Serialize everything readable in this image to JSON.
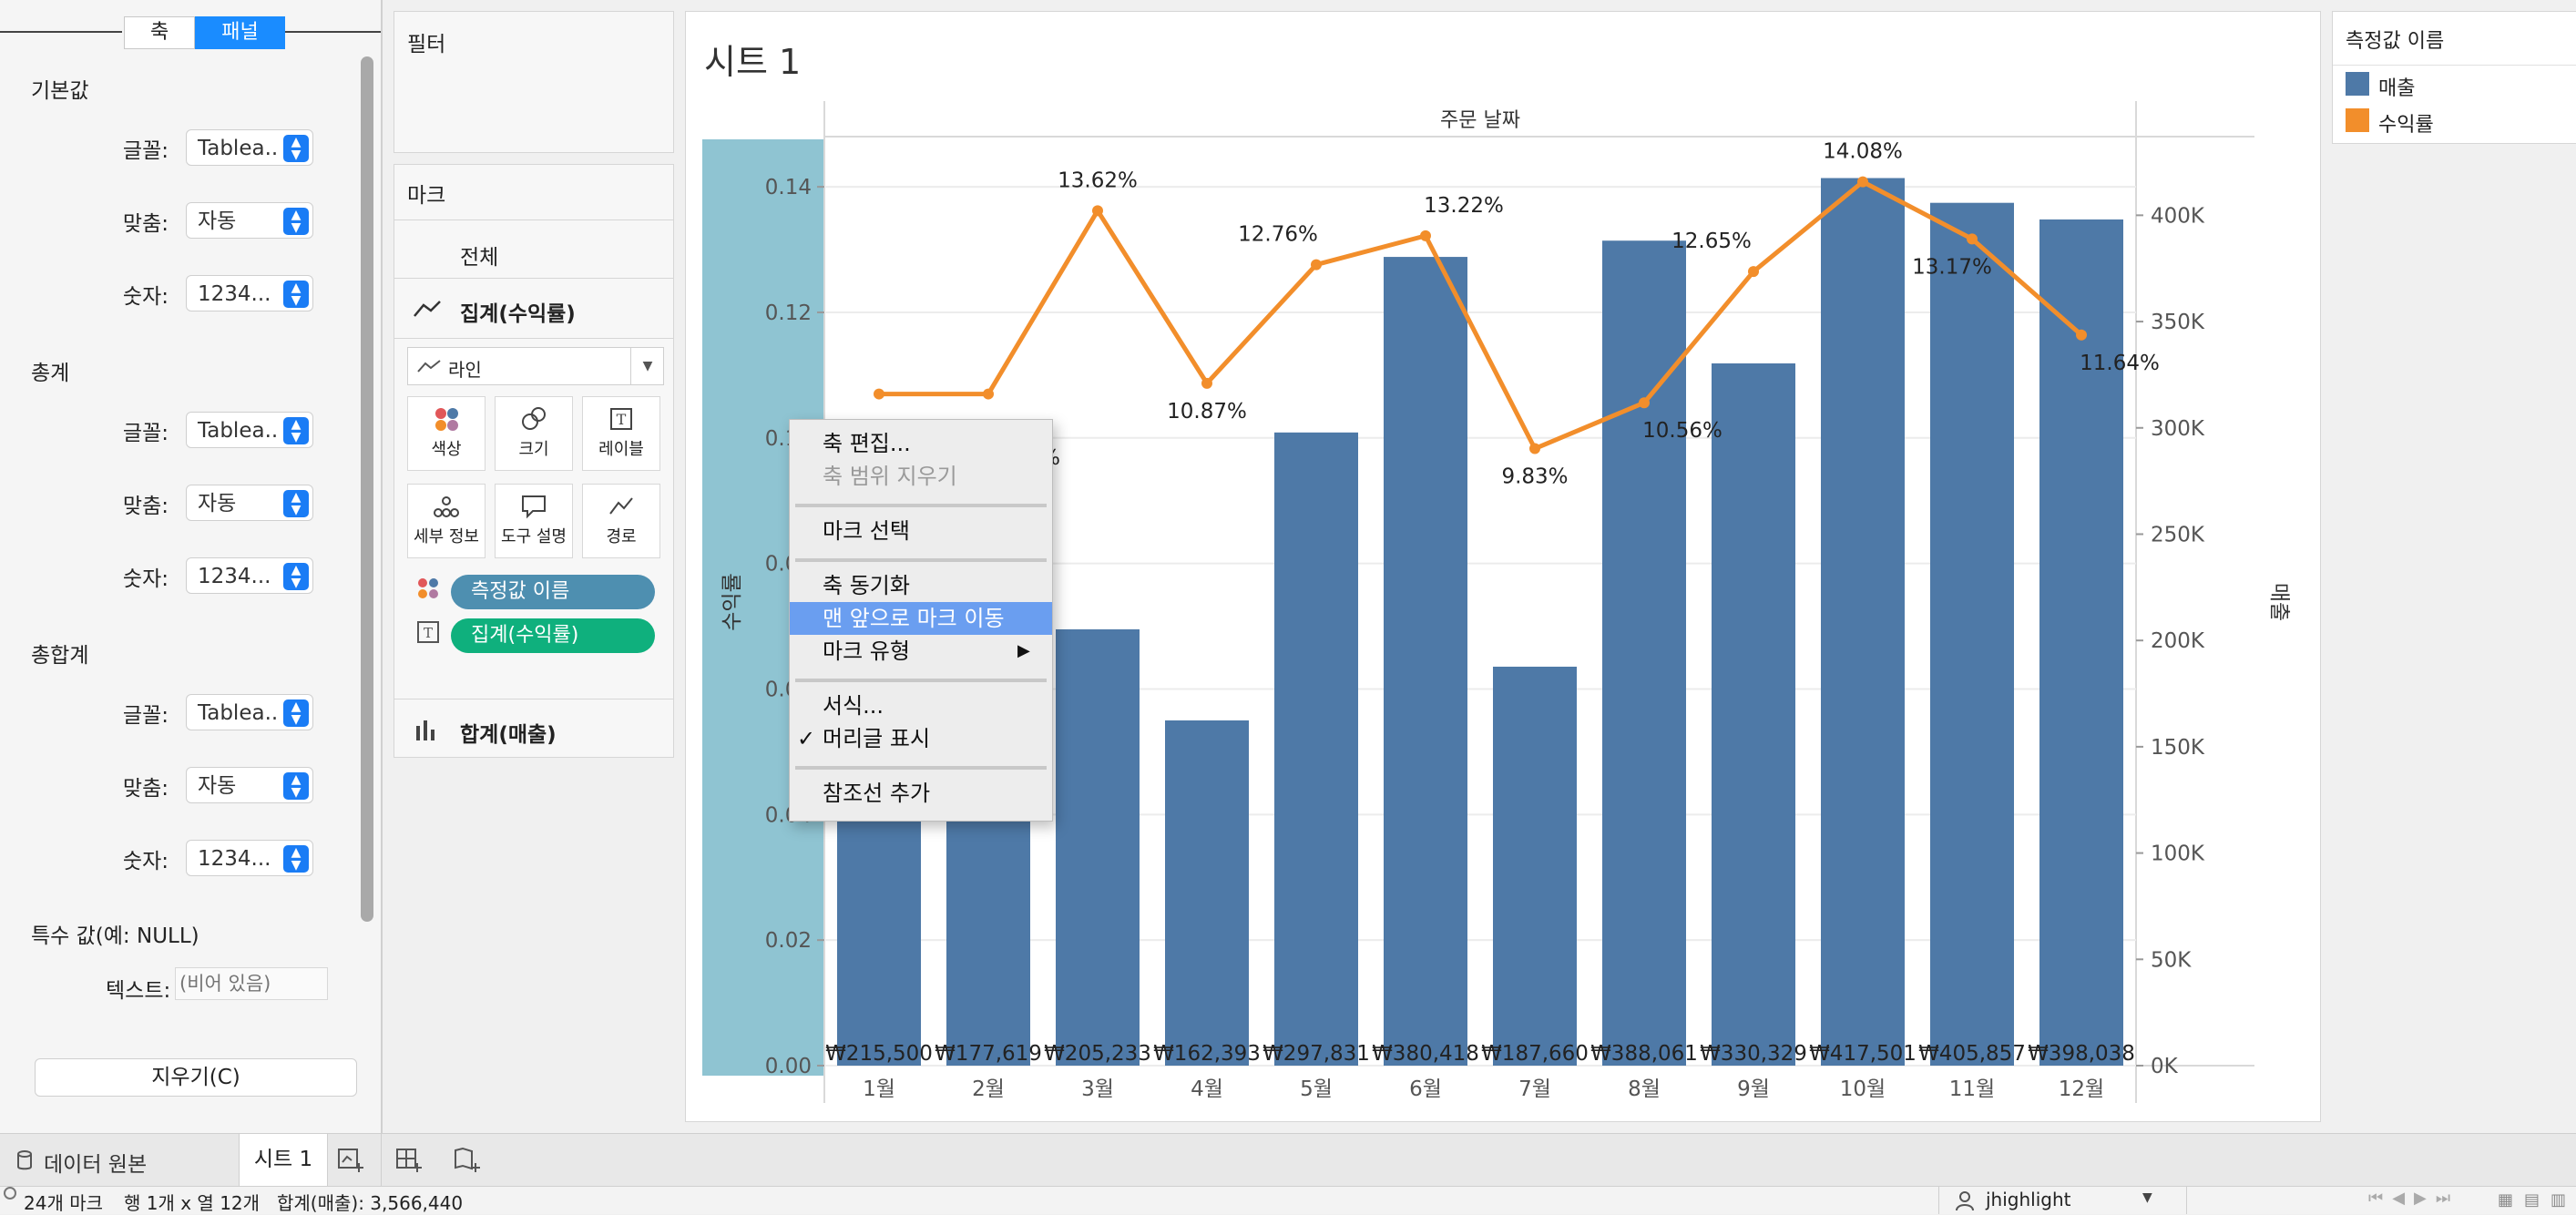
{
  "format_panel": {
    "tabs": [
      "축",
      "패널"
    ],
    "active_tab": "패널",
    "sections": [
      {
        "title": "기본값",
        "font": "Tablea..",
        "align": "자동",
        "number": "1234..."
      },
      {
        "title": "총계",
        "font": "Tablea..",
        "align": "자동",
        "number": "1234..."
      },
      {
        "title": "총합계",
        "font": "Tablea..",
        "align": "자동",
        "number": "1234..."
      }
    ],
    "row_labels": {
      "font": "글꼴:",
      "align": "맞춤:",
      "number": "숫자:"
    },
    "special_title": "특수 값(예: NULL)",
    "text_label": "텍스트:",
    "text_placeholder": "(비어 있음)",
    "clear_button": "지우기(C)"
  },
  "filters": {
    "title": "필터"
  },
  "marks": {
    "title": "마크",
    "all": "전체",
    "profit_card": "집계(수익률)",
    "mark_type": "라인",
    "buttons": [
      "색상",
      "크기",
      "레이블",
      "세부 정보",
      "도구 설명",
      "경로"
    ],
    "pills": [
      {
        "label": "측정값 이름",
        "color": "#4e8fb0"
      },
      {
        "label": "집계(수익률)",
        "color": "#0fb07d"
      }
    ],
    "sales_card": "합계(매출)"
  },
  "sheet": {
    "title": "시트 1",
    "header": "주문 날짜"
  },
  "legend": {
    "title": "측정값 이름",
    "items": [
      {
        "label": "매출",
        "color": "#4e79a7"
      },
      {
        "label": "수익률",
        "color": "#f28e2b"
      }
    ]
  },
  "context_menu": {
    "items": [
      {
        "label": "축 편집...",
        "state": "normal"
      },
      {
        "label": "축 범위 지우기",
        "state": "disabled"
      },
      {
        "label": "마크 선택",
        "state": "normal"
      },
      {
        "label": "축 동기화",
        "state": "normal"
      },
      {
        "label": "맨 앞으로 마크 이동",
        "state": "highlighted"
      },
      {
        "label": "마크 유형",
        "state": "submenu"
      },
      {
        "label": "서식...",
        "state": "normal"
      },
      {
        "label": "머리글 표시",
        "state": "checked"
      },
      {
        "label": "참조선 추가",
        "state": "normal"
      }
    ],
    "submenu_arrow": "▶",
    "check": "✓"
  },
  "chart_data": {
    "type": "bar",
    "categories": [
      "1월",
      "2월",
      "3월",
      "4월",
      "5월",
      "6월",
      "7월",
      "8월",
      "9월",
      "10월",
      "11월",
      "12월"
    ],
    "series": [
      {
        "name": "매출",
        "type": "bar",
        "axis": "right",
        "values": [
          215500,
          177619,
          205233,
          162393,
          297831,
          380418,
          187660,
          388061,
          330329,
          417501,
          405857,
          398038
        ],
        "labels": [
          "₩215,500",
          "₩177,619",
          "₩205,233",
          "₩162,393",
          "₩297,831",
          "₩380,418",
          "₩187,660",
          "₩388,061",
          "₩330,329",
          "₩417,501",
          "₩405,857",
          "₩398,038"
        ]
      },
      {
        "name": "수익률",
        "type": "line",
        "axis": "left",
        "values": [
          0.107,
          0.107,
          0.1362,
          0.1087,
          0.1276,
          0.1322,
          0.0983,
          0.1056,
          0.1265,
          0.1408,
          0.1317,
          0.1164
        ],
        "labels": [
          "",
          "",
          "13.62%",
          "10.87%",
          "12.76%",
          "13.22%",
          "9.83%",
          "10.56%",
          "12.65%",
          "14.08%",
          "13.17%",
          "11.64%"
        ]
      }
    ],
    "partial_label_jan_feb": "%",
    "left_axis": {
      "label": "수익률",
      "ticks": [
        "0.00",
        "0.02",
        "0.04",
        "0.06",
        "0.08",
        "0.10",
        "0.12",
        "0.14"
      ],
      "ylim": [
        0,
        0.148
      ]
    },
    "right_axis": {
      "label": "매출",
      "ticks": [
        "0K",
        "50K",
        "100K",
        "150K",
        "200K",
        "250K",
        "300K",
        "350K",
        "400K"
      ],
      "ylim": [
        0,
        437000
      ]
    },
    "x_header": "주문 날짜",
    "grid": true
  },
  "tabs": {
    "data_source": "데이터 원본",
    "sheet": "시트 1"
  },
  "status": {
    "marks": "24개 마크",
    "rows_cols": "행 1개 x 열 12개",
    "sum": "합계(매출): 3,566,440",
    "user": "jhighlight"
  }
}
